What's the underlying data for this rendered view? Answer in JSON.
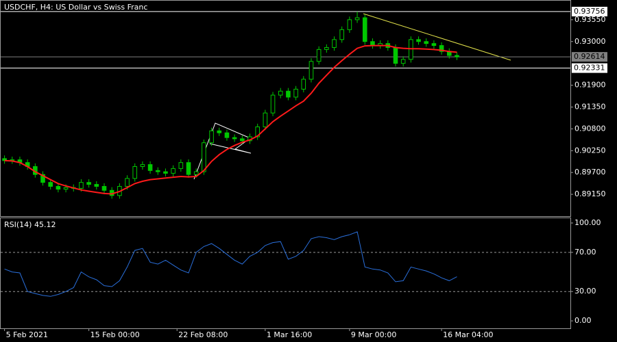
{
  "chart_data": [
    {
      "type": "candlestick",
      "title": "USDCHF, H4:  US Dollar vs Swiss Franc",
      "color": "#00c800",
      "ma_color": "#ff1a1a",
      "open": [
        0.9005,
        0.9,
        0.9002,
        0.8995,
        0.8985,
        0.8965,
        0.8945,
        0.8935,
        0.8928,
        0.8932,
        0.893,
        0.8945,
        0.894,
        0.8935,
        0.8925,
        0.8912,
        0.8935,
        0.8955,
        0.8985,
        0.899,
        0.8975,
        0.8972,
        0.8968,
        0.898,
        0.8995,
        0.8965,
        0.8972,
        0.9045,
        0.9075,
        0.907,
        0.9058,
        0.9055,
        0.905,
        0.906,
        0.9085,
        0.912,
        0.9165,
        0.9175,
        0.916,
        0.918,
        0.9205,
        0.925,
        0.928,
        0.9285,
        0.9305,
        0.933,
        0.9355,
        0.936,
        0.93,
        0.929,
        0.9295,
        0.9285,
        0.9245,
        0.9255,
        0.9305,
        0.93,
        0.9295,
        0.929,
        0.9275,
        0.9265
      ],
      "high": [
        0.9013,
        0.901,
        0.901,
        0.9003,
        0.8993,
        0.8973,
        0.8953,
        0.8943,
        0.894,
        0.894,
        0.8953,
        0.8953,
        0.8948,
        0.8943,
        0.8933,
        0.8943,
        0.8963,
        0.8993,
        0.8998,
        0.8998,
        0.8983,
        0.898,
        0.8988,
        0.9003,
        0.9003,
        0.898,
        0.9053,
        0.9083,
        0.9083,
        0.9078,
        0.9066,
        0.9063,
        0.9068,
        0.9093,
        0.9128,
        0.9173,
        0.9183,
        0.9183,
        0.9188,
        0.9213,
        0.9258,
        0.9288,
        0.9293,
        0.9313,
        0.9338,
        0.9363,
        0.93756,
        0.9368,
        0.9308,
        0.9303,
        0.9303,
        0.9293,
        0.9263,
        0.9313,
        0.9313,
        0.9308,
        0.9303,
        0.9298,
        0.9283,
        0.9273
      ],
      "low": [
        0.8992,
        0.8992,
        0.8987,
        0.8977,
        0.8957,
        0.8937,
        0.8927,
        0.892,
        0.892,
        0.8922,
        0.8922,
        0.8932,
        0.8927,
        0.8917,
        0.8904,
        0.8904,
        0.8927,
        0.8947,
        0.8977,
        0.8967,
        0.8964,
        0.896,
        0.896,
        0.8972,
        0.8957,
        0.8957,
        0.8964,
        0.9037,
        0.9062,
        0.905,
        0.9047,
        0.9042,
        0.9042,
        0.9052,
        0.9077,
        0.9112,
        0.9157,
        0.9152,
        0.9152,
        0.9172,
        0.9197,
        0.9242,
        0.9272,
        0.9277,
        0.9297,
        0.9322,
        0.9347,
        0.9292,
        0.9282,
        0.9282,
        0.9277,
        0.9237,
        0.9237,
        0.9247,
        0.9292,
        0.9287,
        0.9282,
        0.9267,
        0.9257,
        0.92534
      ],
      "close": [
        0.9,
        0.9002,
        0.8995,
        0.8985,
        0.8965,
        0.8945,
        0.8935,
        0.8928,
        0.8932,
        0.893,
        0.8945,
        0.894,
        0.8935,
        0.8925,
        0.8912,
        0.8935,
        0.8955,
        0.8985,
        0.899,
        0.8975,
        0.8972,
        0.8968,
        0.898,
        0.8995,
        0.8965,
        0.8972,
        0.9045,
        0.9075,
        0.907,
        0.9058,
        0.9055,
        0.905,
        0.906,
        0.9085,
        0.912,
        0.9165,
        0.9175,
        0.916,
        0.918,
        0.9205,
        0.925,
        0.928,
        0.9285,
        0.9305,
        0.933,
        0.9355,
        0.936,
        0.93,
        0.929,
        0.9295,
        0.9285,
        0.9245,
        0.9255,
        0.9305,
        0.93,
        0.9295,
        0.929,
        0.9275,
        0.9265,
        0.92614
      ],
      "ma": [
        0.9,
        0.8999,
        0.8995,
        0.8985,
        0.8972,
        0.8962,
        0.8952,
        0.8942,
        0.8936,
        0.8931,
        0.8926,
        0.8923,
        0.892,
        0.8917,
        0.8916,
        0.8922,
        0.8932,
        0.8942,
        0.8948,
        0.8952,
        0.8954,
        0.8956,
        0.8958,
        0.896,
        0.8959,
        0.896,
        0.8975,
        0.8998,
        0.9015,
        0.9028,
        0.9038,
        0.9046,
        0.9052,
        0.9062,
        0.908,
        0.9098,
        0.9112,
        0.9125,
        0.9138,
        0.915,
        0.917,
        0.9195,
        0.9215,
        0.9235,
        0.9252,
        0.9268,
        0.9283,
        0.9289,
        0.929,
        0.929,
        0.929,
        0.9285,
        0.9283,
        0.9282,
        0.9282,
        0.9281,
        0.928,
        0.9278,
        0.9275,
        0.9273
      ],
      "xlim": [
        -0.5,
        73.8
      ],
      "ylim": [
        0.886,
        0.9403
      ],
      "yticks": [
        {
          "value": 0.9355,
          "label": "0.93550"
        },
        {
          "value": 0.93,
          "label": "0.93000"
        },
        {
          "value": 0.919,
          "label": "0.91900"
        },
        {
          "value": 0.9135,
          "label": "0.91350"
        },
        {
          "value": 0.908,
          "label": "0.90800"
        },
        {
          "value": 0.9025,
          "label": "0.90250"
        },
        {
          "value": 0.897,
          "label": "0.89700"
        },
        {
          "value": 0.8915,
          "label": "0.89150"
        }
      ],
      "price_lines": [
        {
          "value": 0.93756,
          "color": "#ffffff"
        },
        {
          "value": 0.92614,
          "color": "#808080"
        },
        {
          "value": 0.92331,
          "color": "#ffffff"
        }
      ]
    },
    {
      "type": "line",
      "title": "RSI(14) 45.12",
      "color": "#2a6fdb",
      "values": [
        53,
        50,
        49,
        30,
        28,
        26,
        25,
        27,
        30,
        34,
        50,
        45,
        42,
        36,
        35,
        41,
        55,
        72,
        74,
        60,
        58,
        62,
        57,
        52,
        49,
        70,
        76,
        79,
        74,
        68,
        62,
        58,
        66,
        70,
        77,
        80,
        81,
        63,
        66,
        72,
        84,
        86,
        85,
        83,
        86,
        88,
        91,
        55,
        53,
        52,
        49,
        40,
        41,
        55,
        53,
        51,
        48,
        44,
        41,
        45.12
      ],
      "xlim": [
        -0.5,
        73.8
      ],
      "ylim": [
        -7.6,
        104.9
      ],
      "yticks": [
        {
          "value": 100,
          "label": "100.00"
        },
        {
          "value": 70,
          "label": "70.00"
        },
        {
          "value": 30,
          "label": "30.00"
        },
        {
          "value": 0,
          "label": "0.00"
        }
      ],
      "levels": [
        70,
        30
      ],
      "xticks": [
        {
          "value": 0,
          "label": "5 Feb 2021"
        },
        {
          "value": 11,
          "label": "15 Feb 00:00"
        },
        {
          "value": 22.5,
          "label": "22 Feb 08:00"
        },
        {
          "value": 34,
          "label": "1 Mar 16:00"
        },
        {
          "value": 45,
          "label": "9 Mar 00:00"
        },
        {
          "value": 57,
          "label": "16 Mar 04:00"
        }
      ]
    }
  ]
}
